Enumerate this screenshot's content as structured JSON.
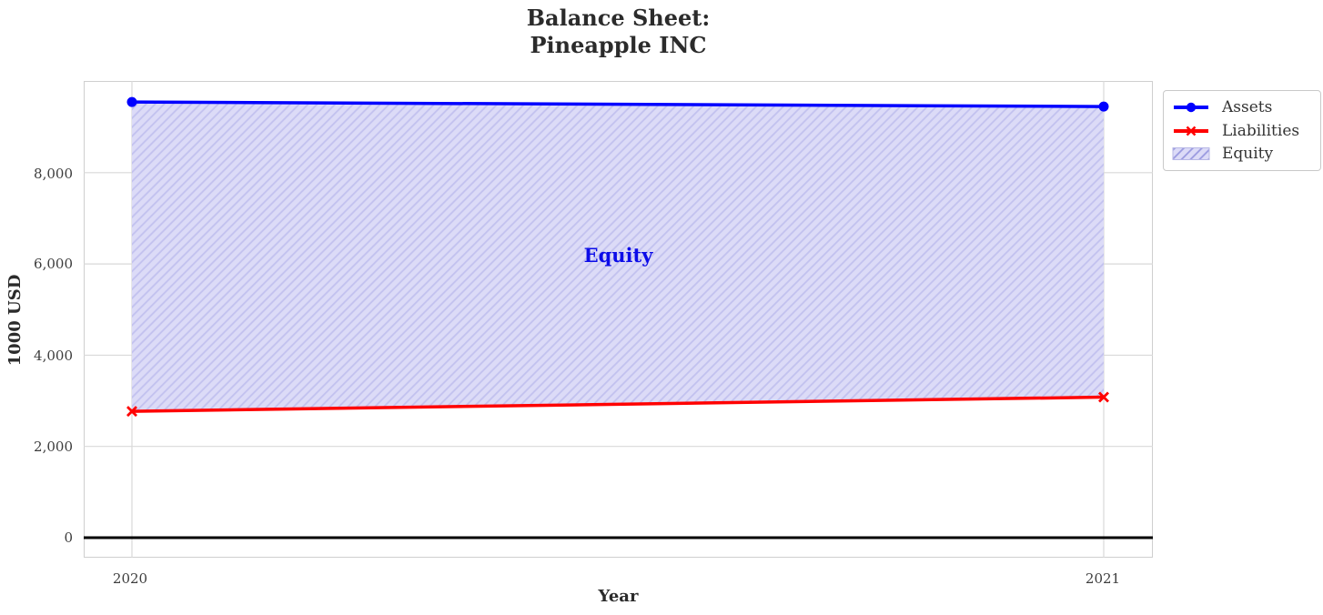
{
  "title": {
    "line1": "Balance Sheet:",
    "line2": "Pineapple INC"
  },
  "axes": {
    "xlabel": "Year",
    "ylabel": "1000 USD",
    "x_tick_labels": [
      "2020",
      "2021"
    ],
    "y_tick_labels": [
      "0",
      "2,000",
      "4,000",
      "6,000",
      "8,000"
    ]
  },
  "annotation": {
    "text": "Equity"
  },
  "legend": {
    "items": [
      {
        "label": "Assets",
        "marker": "circle-on-line",
        "color": "#0000ff"
      },
      {
        "label": "Liabilities",
        "marker": "x-on-line",
        "color": "#ff0000"
      },
      {
        "label": "Equity",
        "marker": "hatched-patch",
        "color": "#dcdbf7"
      }
    ]
  },
  "colors": {
    "assets_line": "#0000ff",
    "liabilities_line": "#ff0000",
    "equity_fill": "#dcdbf7",
    "equity_hatch": "#c2c1ef",
    "annotation_text": "#0c0ce8",
    "grid": "#d9d9d9",
    "zero_line": "#000000",
    "text": "#2b2b2b"
  },
  "chart_data": {
    "type": "line",
    "title": "Balance Sheet:\nPineapple INC",
    "xlabel": "Year",
    "ylabel": "1000 USD",
    "x": [
      2020,
      2021
    ],
    "series": [
      {
        "name": "Assets",
        "values": [
          9550,
          9450
        ],
        "color": "#0000ff",
        "marker": "o",
        "linewidth": 3.5
      },
      {
        "name": "Liabilities",
        "values": [
          2770,
          3080
        ],
        "color": "#ff0000",
        "marker": "x",
        "linewidth": 3.5
      }
    ],
    "area": {
      "name": "Equity",
      "between": [
        "Liabilities",
        "Assets"
      ],
      "implied_values": [
        6780,
        6370
      ],
      "style": "hatched",
      "fill": "#dcdbf7",
      "hatch": "/"
    },
    "annotations": [
      {
        "text": "Equity",
        "x": 2020.5,
        "y": 6200,
        "color": "blue",
        "bold": true
      }
    ],
    "xticks": [
      2020,
      2021
    ],
    "yticks": [
      0,
      2000,
      4000,
      6000,
      8000
    ],
    "ylim_approx": [
      -440,
      10010
    ],
    "grid": true,
    "zero_axhline": true,
    "legend_position": "upper right, outside axes"
  }
}
